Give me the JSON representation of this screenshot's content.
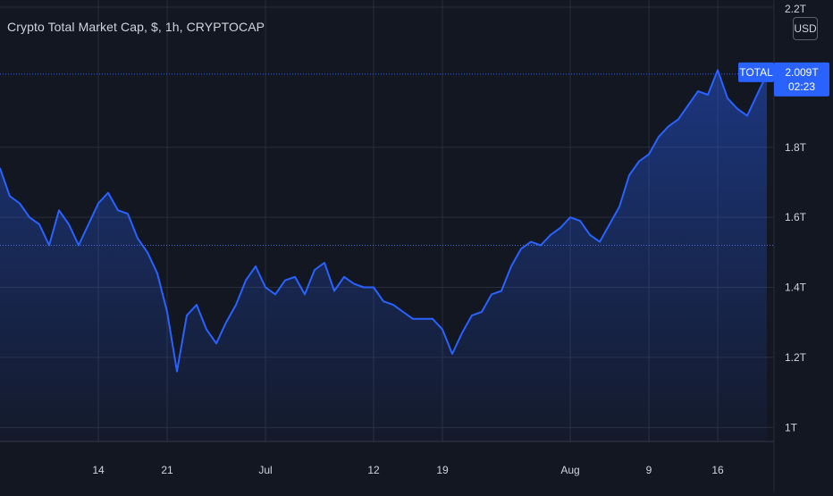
{
  "header": {
    "title": "Crypto Total Market Cap, $, 1h, CRYPTOCAP",
    "currency_button": "USD"
  },
  "price_label": {
    "symbol": "TOTAL",
    "value": "2.009T",
    "countdown": "02:23"
  },
  "colors": {
    "background": "#131722",
    "line": "#2962ff",
    "grid": "#2a2e39",
    "text": "#d1d4dc",
    "label_bg": "#2962ff"
  },
  "chart_data": {
    "type": "area",
    "title": "Crypto Total Market Cap, $, 1h, CRYPTOCAP",
    "xlabel": "",
    "ylabel": "",
    "y_unit": "T",
    "ylim": [
      0.96,
      2.2
    ],
    "y_ticks": [
      {
        "value": 1.0,
        "label": "1T"
      },
      {
        "value": 1.2,
        "label": "1.2T"
      },
      {
        "value": 1.4,
        "label": "1.4T"
      },
      {
        "value": 1.6,
        "label": "1.6T"
      },
      {
        "value": 1.8,
        "label": "1.8T"
      },
      {
        "value": 2.2,
        "label": "2.2T"
      }
    ],
    "x_ticks": [
      {
        "date": "2021-06-14",
        "label": "14"
      },
      {
        "date": "2021-06-21",
        "label": "21"
      },
      {
        "date": "2021-07-01",
        "label": "Jul"
      },
      {
        "date": "2021-07-12",
        "label": "12"
      },
      {
        "date": "2021-07-19",
        "label": "19"
      },
      {
        "date": "2021-08-01",
        "label": "Aug"
      },
      {
        "date": "2021-08-09",
        "label": "9"
      },
      {
        "date": "2021-08-16",
        "label": "16"
      }
    ],
    "xlim": [
      "2021-06-04",
      "2021-08-21"
    ],
    "last_value": 2.009,
    "reference_level": 1.52,
    "grid": true,
    "legend": "none",
    "series": [
      {
        "points": [
          [
            "2021-06-04",
            1.74
          ],
          [
            "2021-06-05",
            1.66
          ],
          [
            "2021-06-06",
            1.64
          ],
          [
            "2021-06-07",
            1.6
          ],
          [
            "2021-06-08",
            1.58
          ],
          [
            "2021-06-09",
            1.52
          ],
          [
            "2021-06-10",
            1.62
          ],
          [
            "2021-06-11",
            1.58
          ],
          [
            "2021-06-12",
            1.52
          ],
          [
            "2021-06-13",
            1.58
          ],
          [
            "2021-06-14",
            1.64
          ],
          [
            "2021-06-15",
            1.67
          ],
          [
            "2021-06-16",
            1.62
          ],
          [
            "2021-06-17",
            1.61
          ],
          [
            "2021-06-18",
            1.54
          ],
          [
            "2021-06-19",
            1.5
          ],
          [
            "2021-06-20",
            1.44
          ],
          [
            "2021-06-21",
            1.33
          ],
          [
            "2021-06-22",
            1.16
          ],
          [
            "2021-06-23",
            1.32
          ],
          [
            "2021-06-24",
            1.35
          ],
          [
            "2021-06-25",
            1.28
          ],
          [
            "2021-06-26",
            1.24
          ],
          [
            "2021-06-27",
            1.3
          ],
          [
            "2021-06-28",
            1.35
          ],
          [
            "2021-06-29",
            1.42
          ],
          [
            "2021-06-30",
            1.46
          ],
          [
            "2021-07-01",
            1.4
          ],
          [
            "2021-07-02",
            1.38
          ],
          [
            "2021-07-03",
            1.42
          ],
          [
            "2021-07-04",
            1.43
          ],
          [
            "2021-07-05",
            1.38
          ],
          [
            "2021-07-06",
            1.45
          ],
          [
            "2021-07-07",
            1.47
          ],
          [
            "2021-07-08",
            1.39
          ],
          [
            "2021-07-09",
            1.43
          ],
          [
            "2021-07-10",
            1.41
          ],
          [
            "2021-07-11",
            1.4
          ],
          [
            "2021-07-12",
            1.4
          ],
          [
            "2021-07-13",
            1.36
          ],
          [
            "2021-07-14",
            1.35
          ],
          [
            "2021-07-15",
            1.33
          ],
          [
            "2021-07-16",
            1.31
          ],
          [
            "2021-07-17",
            1.31
          ],
          [
            "2021-07-18",
            1.31
          ],
          [
            "2021-07-19",
            1.28
          ],
          [
            "2021-07-20",
            1.21
          ],
          [
            "2021-07-21",
            1.27
          ],
          [
            "2021-07-22",
            1.32
          ],
          [
            "2021-07-23",
            1.33
          ],
          [
            "2021-07-24",
            1.38
          ],
          [
            "2021-07-25",
            1.39
          ],
          [
            "2021-07-26",
            1.46
          ],
          [
            "2021-07-27",
            1.51
          ],
          [
            "2021-07-28",
            1.53
          ],
          [
            "2021-07-29",
            1.52
          ],
          [
            "2021-07-30",
            1.55
          ],
          [
            "2021-07-31",
            1.57
          ],
          [
            "2021-08-01",
            1.6
          ],
          [
            "2021-08-02",
            1.59
          ],
          [
            "2021-08-03",
            1.55
          ],
          [
            "2021-08-04",
            1.53
          ],
          [
            "2021-08-05",
            1.58
          ],
          [
            "2021-08-06",
            1.63
          ],
          [
            "2021-08-07",
            1.72
          ],
          [
            "2021-08-08",
            1.76
          ],
          [
            "2021-08-09",
            1.78
          ],
          [
            "2021-08-10",
            1.83
          ],
          [
            "2021-08-11",
            1.86
          ],
          [
            "2021-08-12",
            1.88
          ],
          [
            "2021-08-13",
            1.92
          ],
          [
            "2021-08-14",
            1.96
          ],
          [
            "2021-08-15",
            1.95
          ],
          [
            "2021-08-16",
            2.02
          ],
          [
            "2021-08-17",
            1.94
          ],
          [
            "2021-08-18",
            1.91
          ],
          [
            "2021-08-19",
            1.89
          ],
          [
            "2021-08-20",
            1.95
          ],
          [
            "2021-08-21",
            2.009
          ]
        ]
      }
    ]
  }
}
